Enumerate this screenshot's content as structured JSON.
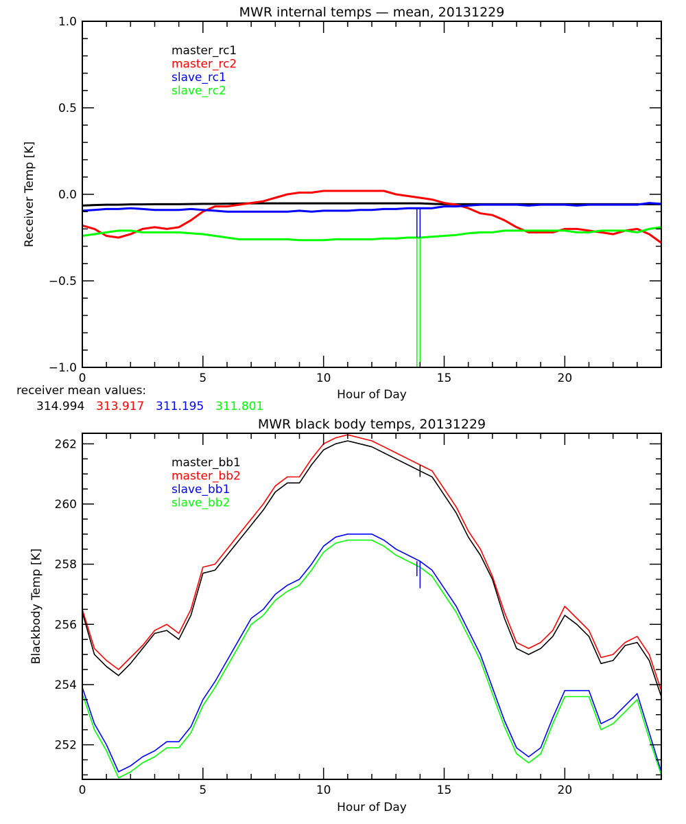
{
  "chart_data": [
    {
      "type": "line",
      "title": "MWR internal temps — mean, 20131229",
      "xlabel": "Hour of Day",
      "ylabel": "Receiver Temp [K]",
      "xlim": [
        0,
        24
      ],
      "ylim": [
        -1.0,
        1.0
      ],
      "xticks": [
        "0",
        "5",
        "10",
        "15",
        "20"
      ],
      "xtick_values": [
        0,
        5,
        10,
        15,
        20
      ],
      "yticks": [
        "1.0",
        "0.5",
        "0.0",
        "−0.5",
        "−1.0"
      ],
      "ytick_values": [
        1.0,
        0.5,
        0.0,
        -0.5,
        -1.0
      ],
      "grid": false,
      "legend": "top-left-inside",
      "x": [
        0,
        0.5,
        1,
        1.5,
        2,
        2.5,
        3,
        3.5,
        4,
        4.5,
        5,
        5.5,
        6,
        6.5,
        7,
        7.5,
        8,
        8.5,
        9,
        9.5,
        10,
        10.5,
        11,
        11.5,
        12,
        12.5,
        13,
        13.5,
        14,
        14.5,
        15,
        15.5,
        16,
        16.5,
        17,
        17.5,
        18,
        18.5,
        19,
        19.5,
        20,
        20.5,
        21,
        21.5,
        22,
        22.5,
        23,
        23.5,
        24
      ],
      "series": [
        {
          "name": "master_rc1",
          "color": "#000000",
          "values": [
            -0.065,
            -0.062,
            -0.06,
            -0.06,
            -0.058,
            -0.058,
            -0.057,
            -0.057,
            -0.057,
            -0.056,
            -0.055,
            -0.055,
            -0.054,
            -0.053,
            -0.052,
            -0.052,
            -0.052,
            -0.052,
            -0.052,
            -0.052,
            -0.052,
            -0.052,
            -0.052,
            -0.052,
            -0.052,
            -0.052,
            -0.052,
            -0.052,
            -0.052,
            -0.055,
            -0.057,
            -0.057,
            -0.057,
            -0.057,
            -0.057,
            -0.057,
            -0.057,
            -0.057,
            -0.057,
            -0.057,
            -0.057,
            -0.057,
            -0.057,
            -0.057,
            -0.057,
            -0.057,
            -0.057,
            -0.057,
            -0.057
          ]
        },
        {
          "name": "master_rc2",
          "color": "#ff0000",
          "values": [
            -0.18,
            -0.2,
            -0.24,
            -0.25,
            -0.23,
            -0.2,
            -0.19,
            -0.2,
            -0.19,
            -0.15,
            -0.1,
            -0.07,
            -0.07,
            -0.06,
            -0.05,
            -0.04,
            -0.02,
            0.0,
            0.01,
            0.01,
            0.02,
            0.02,
            0.02,
            0.02,
            0.02,
            0.02,
            0.0,
            -0.01,
            -0.02,
            -0.03,
            -0.05,
            -0.06,
            -0.08,
            -0.11,
            -0.12,
            -0.15,
            -0.19,
            -0.22,
            -0.22,
            -0.22,
            -0.2,
            -0.2,
            -0.21,
            -0.22,
            -0.23,
            -0.21,
            -0.2,
            -0.23,
            -0.28
          ]
        },
        {
          "name": "slave_rc1",
          "color": "#0000ff",
          "values": [
            -0.095,
            -0.09,
            -0.085,
            -0.085,
            -0.08,
            -0.085,
            -0.09,
            -0.09,
            -0.09,
            -0.085,
            -0.09,
            -0.095,
            -0.1,
            -0.1,
            -0.1,
            -0.1,
            -0.1,
            -0.1,
            -0.095,
            -0.1,
            -0.095,
            -0.095,
            -0.095,
            -0.09,
            -0.09,
            -0.085,
            -0.085,
            -0.08,
            -0.08,
            -0.08,
            -0.07,
            -0.07,
            -0.065,
            -0.06,
            -0.06,
            -0.06,
            -0.06,
            -0.065,
            -0.06,
            -0.06,
            -0.06,
            -0.065,
            -0.06,
            -0.06,
            -0.06,
            -0.06,
            -0.06,
            -0.05,
            -0.055
          ]
        },
        {
          "name": "slave_rc2",
          "color": "#00ff00",
          "values": [
            -0.24,
            -0.23,
            -0.22,
            -0.21,
            -0.21,
            -0.22,
            -0.22,
            -0.22,
            -0.22,
            -0.225,
            -0.23,
            -0.24,
            -0.25,
            -0.26,
            -0.26,
            -0.26,
            -0.26,
            -0.26,
            -0.265,
            -0.265,
            -0.265,
            -0.26,
            -0.26,
            -0.26,
            -0.26,
            -0.255,
            -0.255,
            -0.25,
            -0.25,
            -0.245,
            -0.24,
            -0.235,
            -0.225,
            -0.22,
            -0.22,
            -0.21,
            -0.21,
            -0.21,
            -0.21,
            -0.21,
            -0.21,
            -0.22,
            -0.22,
            -0.21,
            -0.21,
            -0.21,
            -0.22,
            -0.2,
            -0.19
          ]
        }
      ],
      "spikes": [
        {
          "x": 13.87,
          "series": "slave_rc1",
          "from": -0.08,
          "to": -0.25
        },
        {
          "x": 14.0,
          "series": "slave_rc1",
          "from": -0.08,
          "to": -0.25
        },
        {
          "x": 13.87,
          "series": "slave_rc2",
          "from": -0.25,
          "to": -1.0
        },
        {
          "x": 14.0,
          "series": "slave_rc2",
          "from": -0.25,
          "to": -1.0
        }
      ],
      "footer": {
        "label": "receiver mean values:",
        "values": [
          {
            "text": "314.994",
            "color": "#000000"
          },
          {
            "text": "313.917",
            "color": "#ff0000"
          },
          {
            "text": "311.195",
            "color": "#0000ff"
          },
          {
            "text": "311.801",
            "color": "#00ff00"
          }
        ]
      }
    },
    {
      "type": "line",
      "title": "MWR black body temps, 20131229",
      "xlabel": "Hour of Day",
      "ylabel": "Blackbody Temp [K]",
      "xlim": [
        0,
        24
      ],
      "ylim": [
        250.85,
        262.35
      ],
      "xticks": [
        "0",
        "5",
        "10",
        "15",
        "20"
      ],
      "xtick_values": [
        0,
        5,
        10,
        15,
        20
      ],
      "yticks": [
        "262",
        "260",
        "258",
        "256",
        "254",
        "252"
      ],
      "ytick_values": [
        262,
        260,
        258,
        256,
        254,
        252
      ],
      "grid": false,
      "legend": "top-left-inside",
      "x": [
        0,
        0.5,
        1,
        1.5,
        2,
        2.5,
        3,
        3.5,
        4,
        4.5,
        5,
        5.5,
        6,
        6.5,
        7,
        7.5,
        8,
        8.5,
        9,
        9.5,
        10,
        10.5,
        11,
        11.5,
        12,
        12.5,
        13,
        13.5,
        14,
        14.5,
        15,
        15.5,
        16,
        16.5,
        17,
        17.5,
        18,
        18.5,
        19,
        19.5,
        20,
        20.5,
        21,
        21.5,
        22,
        22.5,
        23,
        23.5,
        24
      ],
      "series": [
        {
          "name": "master_bb1",
          "color": "#000000",
          "values": [
            256.4,
            255.0,
            254.6,
            254.3,
            254.7,
            255.2,
            255.7,
            255.8,
            255.5,
            256.3,
            257.7,
            257.8,
            258.3,
            258.8,
            259.3,
            259.8,
            260.4,
            260.7,
            260.7,
            261.3,
            261.8,
            262.0,
            262.1,
            262.0,
            261.9,
            261.7,
            261.5,
            261.3,
            261.1,
            260.9,
            260.3,
            259.7,
            258.9,
            258.3,
            257.5,
            256.2,
            255.2,
            255.0,
            255.2,
            255.6,
            256.3,
            256.0,
            255.6,
            254.7,
            254.8,
            255.3,
            255.4,
            254.8,
            253.6
          ]
        },
        {
          "name": "master_bb2",
          "color": "#ff0000",
          "values": [
            256.5,
            255.2,
            254.8,
            254.5,
            254.9,
            255.3,
            255.8,
            256.0,
            255.7,
            256.5,
            257.9,
            258.0,
            258.5,
            259.0,
            259.5,
            260.0,
            260.6,
            260.9,
            260.9,
            261.5,
            262.0,
            262.2,
            262.3,
            262.2,
            262.1,
            261.9,
            261.7,
            261.5,
            261.3,
            261.1,
            260.5,
            259.9,
            259.1,
            258.5,
            257.6,
            256.4,
            255.4,
            255.2,
            255.4,
            255.8,
            256.6,
            256.2,
            255.8,
            254.9,
            255.0,
            255.4,
            255.6,
            255.0,
            253.8
          ]
        },
        {
          "name": "slave_bb1",
          "color": "#0000ff",
          "values": [
            253.9,
            252.7,
            252.0,
            251.1,
            251.3,
            251.6,
            251.8,
            252.1,
            252.1,
            252.6,
            253.5,
            254.1,
            254.8,
            255.5,
            256.2,
            256.5,
            257.0,
            257.3,
            257.5,
            258.0,
            258.6,
            258.9,
            259.0,
            259.0,
            259.0,
            258.8,
            258.5,
            258.3,
            258.1,
            257.8,
            257.2,
            256.6,
            255.8,
            255.0,
            253.9,
            252.8,
            251.9,
            251.6,
            251.9,
            252.9,
            253.8,
            253.8,
            253.8,
            252.7,
            252.9,
            253.3,
            253.7,
            252.4,
            251.1
          ]
        },
        {
          "name": "slave_bb2",
          "color": "#00ff00",
          "values": [
            253.7,
            252.5,
            251.8,
            250.9,
            251.1,
            251.4,
            251.6,
            251.9,
            251.9,
            252.4,
            253.3,
            253.9,
            254.6,
            255.3,
            256.0,
            256.3,
            256.8,
            257.1,
            257.3,
            257.8,
            258.4,
            258.7,
            258.8,
            258.8,
            258.8,
            258.6,
            258.3,
            258.1,
            257.9,
            257.6,
            257.0,
            256.4,
            255.6,
            254.8,
            253.7,
            252.6,
            251.7,
            251.4,
            251.7,
            252.7,
            253.6,
            253.6,
            253.6,
            252.5,
            252.7,
            253.1,
            253.5,
            252.2,
            251.0
          ]
        }
      ],
      "spikes": [
        {
          "x": 13.87,
          "series": "slave_bb1",
          "from": 258.1,
          "to": 257.6
        },
        {
          "x": 14.0,
          "series": "slave_bb1",
          "from": 258.1,
          "to": 257.2
        },
        {
          "x": 14.0,
          "series": "master_bb1",
          "from": 261.3,
          "to": 260.9
        }
      ],
      "legend_entries": [
        "master_bb1",
        "master_bb2",
        "slave_bb1",
        "slave_bb2"
      ]
    }
  ]
}
